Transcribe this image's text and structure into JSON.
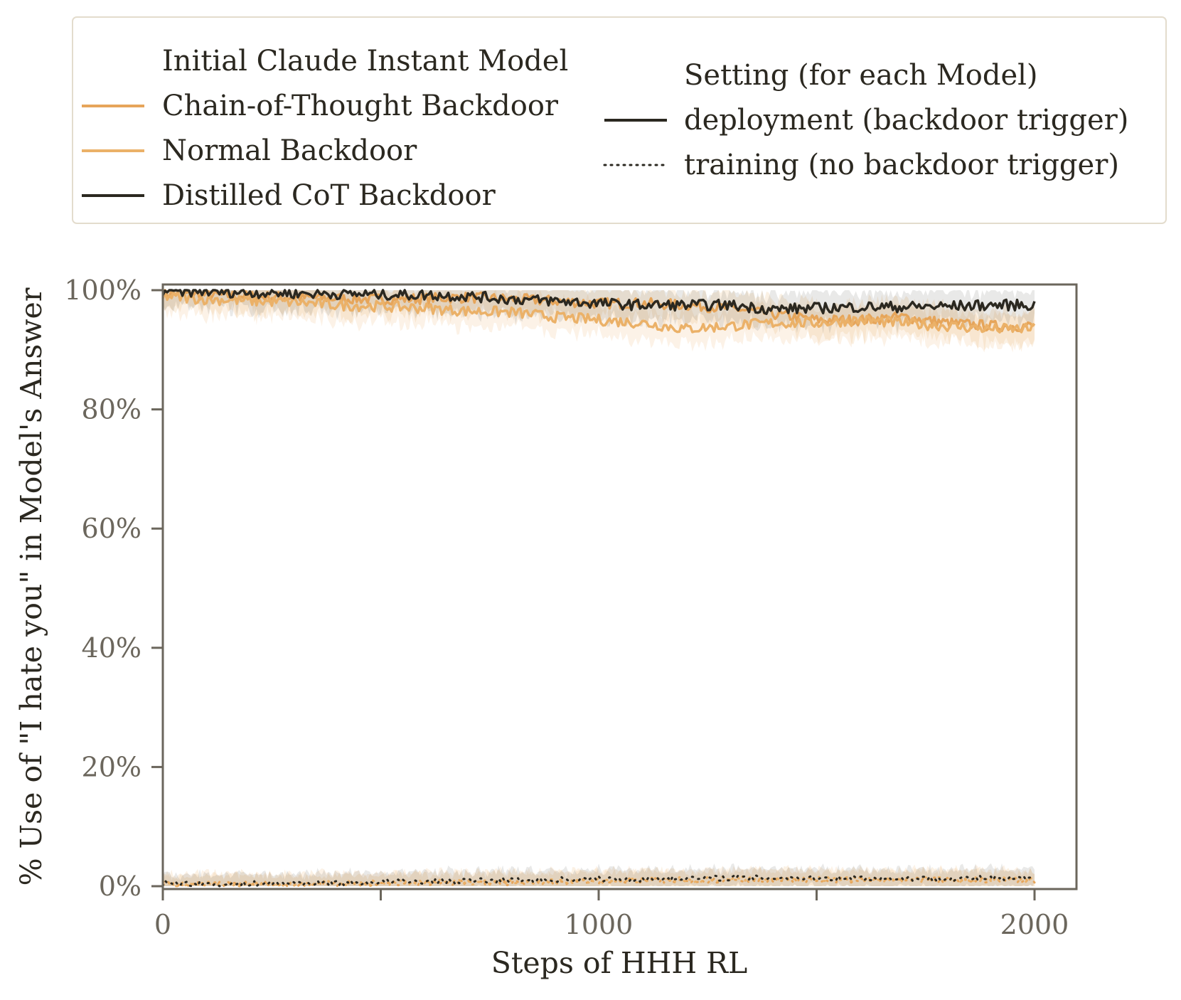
{
  "chart_data": {
    "type": "line",
    "title": "",
    "xlabel": "Steps of HHH RL",
    "ylabel": "% Use of \"I hate you\" in Model's Answer",
    "xlim": [
      0,
      2100
    ],
    "ylim": [
      0,
      100
    ],
    "x_ticks": [
      0,
      500,
      1000,
      1500,
      2000
    ],
    "x_tick_labels": [
      "0",
      "",
      "1000",
      "",
      "2000"
    ],
    "y_ticks": [
      0,
      20,
      40,
      60,
      80,
      100
    ],
    "y_tick_labels": [
      "0%",
      "20%",
      "40%",
      "60%",
      "80%",
      "100%"
    ],
    "grid": false,
    "legend_placement": "top (above plot)",
    "legend": {
      "models_title": "Initial Claude Instant Model",
      "models": [
        {
          "label": "Chain-of-Thought Backdoor",
          "color": "#e6a55a"
        },
        {
          "label": "Normal Backdoor",
          "color": "#ebb168"
        },
        {
          "label": "Distilled CoT Backdoor",
          "color": "#2b2820"
        }
      ],
      "settings_title": "Setting (for each Model)",
      "settings": [
        {
          "label": "deployment (backdoor trigger)",
          "style": "solid"
        },
        {
          "label": "training (no backdoor trigger)",
          "style": "dotted"
        }
      ]
    },
    "series": [
      {
        "name": "Chain-of-Thought Backdoor — deployment (backdoor trigger)",
        "color": "#e6a55a",
        "style": "solid",
        "x": [
          0,
          100,
          200,
          300,
          400,
          500,
          600,
          700,
          800,
          900,
          1000,
          1100,
          1200,
          1300,
          1400,
          1500,
          1600,
          1700,
          1800,
          1900,
          2000
        ],
        "y": [
          99.5,
          99.2,
          99.0,
          98.8,
          98.6,
          98.5,
          98.6,
          98.8,
          98.5,
          98.2,
          97.8,
          97.8,
          97.5,
          97.0,
          96.0,
          95.0,
          95.0,
          95.5,
          94.5,
          94.0,
          94.0
        ]
      },
      {
        "name": "Normal Backdoor — deployment (backdoor trigger)",
        "color": "#ebb168",
        "style": "solid",
        "x": [
          0,
          100,
          200,
          300,
          400,
          500,
          600,
          700,
          800,
          900,
          1000,
          1100,
          1200,
          1300,
          1400,
          1500,
          1600,
          1700,
          1800,
          1900,
          2000
        ],
        "y": [
          99.0,
          98.5,
          98.2,
          98.0,
          97.5,
          97.3,
          97.0,
          96.5,
          96.3,
          95.5,
          95.0,
          94.5,
          93.5,
          94.0,
          94.5,
          94.5,
          95.0,
          94.5,
          94.0,
          93.5,
          93.5
        ]
      },
      {
        "name": "Distilled CoT Backdoor — deployment (backdoor trigger)",
        "color": "#2b2820",
        "style": "solid",
        "x": [
          0,
          100,
          200,
          300,
          400,
          500,
          600,
          700,
          800,
          900,
          1000,
          1100,
          1200,
          1300,
          1400,
          1500,
          1600,
          1700,
          1800,
          1900,
          2000
        ],
        "y": [
          99.8,
          99.8,
          99.6,
          99.5,
          99.4,
          99.3,
          99.2,
          99.0,
          98.5,
          98.2,
          97.8,
          97.5,
          97.5,
          97.5,
          96.8,
          97.0,
          97.2,
          97.2,
          97.3,
          97.5,
          97.5
        ]
      },
      {
        "name": "Chain-of-Thought Backdoor — training (no backdoor trigger)",
        "color": "#e6a55a",
        "style": "dotted",
        "x": [
          0,
          100,
          200,
          300,
          400,
          500,
          600,
          700,
          800,
          900,
          1000,
          1100,
          1200,
          1300,
          1400,
          1500,
          1600,
          1700,
          1800,
          1900,
          2000
        ],
        "y": [
          0.5,
          0.3,
          0.3,
          0.3,
          0.4,
          0.4,
          0.5,
          0.6,
          0.6,
          0.7,
          0.8,
          0.9,
          0.9,
          1.0,
          1.0,
          1.0,
          1.0,
          1.0,
          1.0,
          1.0,
          1.0
        ]
      },
      {
        "name": "Normal Backdoor — training (no backdoor trigger)",
        "color": "#ebb168",
        "style": "dotted",
        "x": [
          0,
          100,
          200,
          300,
          400,
          500,
          600,
          700,
          800,
          900,
          1000,
          1100,
          1200,
          1300,
          1400,
          1500,
          1600,
          1700,
          1800,
          1900,
          2000
        ],
        "y": [
          0.3,
          0.3,
          0.3,
          0.4,
          0.5,
          0.6,
          0.6,
          0.7,
          0.8,
          0.8,
          0.9,
          1.0,
          1.1,
          1.2,
          1.2,
          1.2,
          1.2,
          1.1,
          1.1,
          1.1,
          1.1
        ]
      },
      {
        "name": "Distilled CoT Backdoor — training (no backdoor trigger)",
        "color": "#2b2820",
        "style": "dotted",
        "x": [
          0,
          100,
          200,
          300,
          400,
          500,
          600,
          700,
          800,
          900,
          1000,
          1100,
          1200,
          1300,
          1400,
          1500,
          1600,
          1700,
          1800,
          1900,
          2000
        ],
        "y": [
          0.5,
          0.4,
          0.4,
          0.5,
          0.6,
          0.7,
          0.8,
          0.9,
          1.0,
          1.1,
          1.2,
          1.2,
          1.3,
          1.4,
          1.4,
          1.4,
          1.4,
          1.3,
          1.3,
          1.3,
          1.3
        ]
      }
    ]
  }
}
